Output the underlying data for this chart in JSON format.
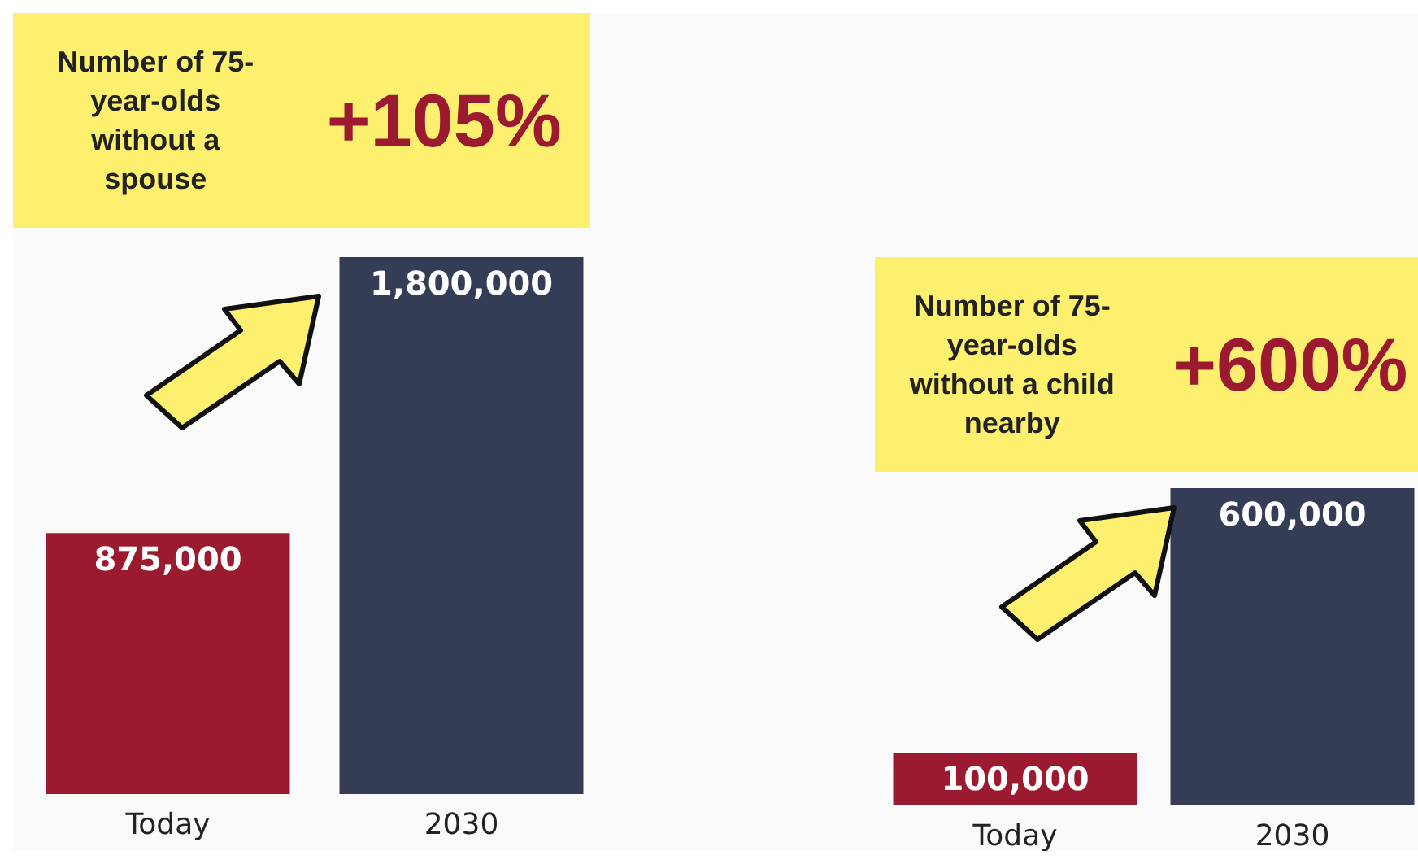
{
  "chart_data": [
    {
      "type": "bar",
      "categories": [
        "Today",
        "2030"
      ],
      "values": [
        875000,
        1800000
      ],
      "colors": [
        "#9b1a30",
        "#353c55"
      ],
      "value_labels": [
        "875,000",
        "1,800,000"
      ],
      "annotations": [
        "Number of 75-year-olds without a spouse",
        "+105%"
      ]
    },
    {
      "type": "bar",
      "categories": [
        "Today",
        "2030"
      ],
      "values": [
        100000,
        600000
      ],
      "colors": [
        "#9b1a30",
        "#353c55"
      ],
      "value_labels": [
        "100,000",
        "600,000"
      ],
      "annotations": [
        "Number of 75-year-olds without a child nearby",
        "+600%"
      ]
    }
  ]
}
